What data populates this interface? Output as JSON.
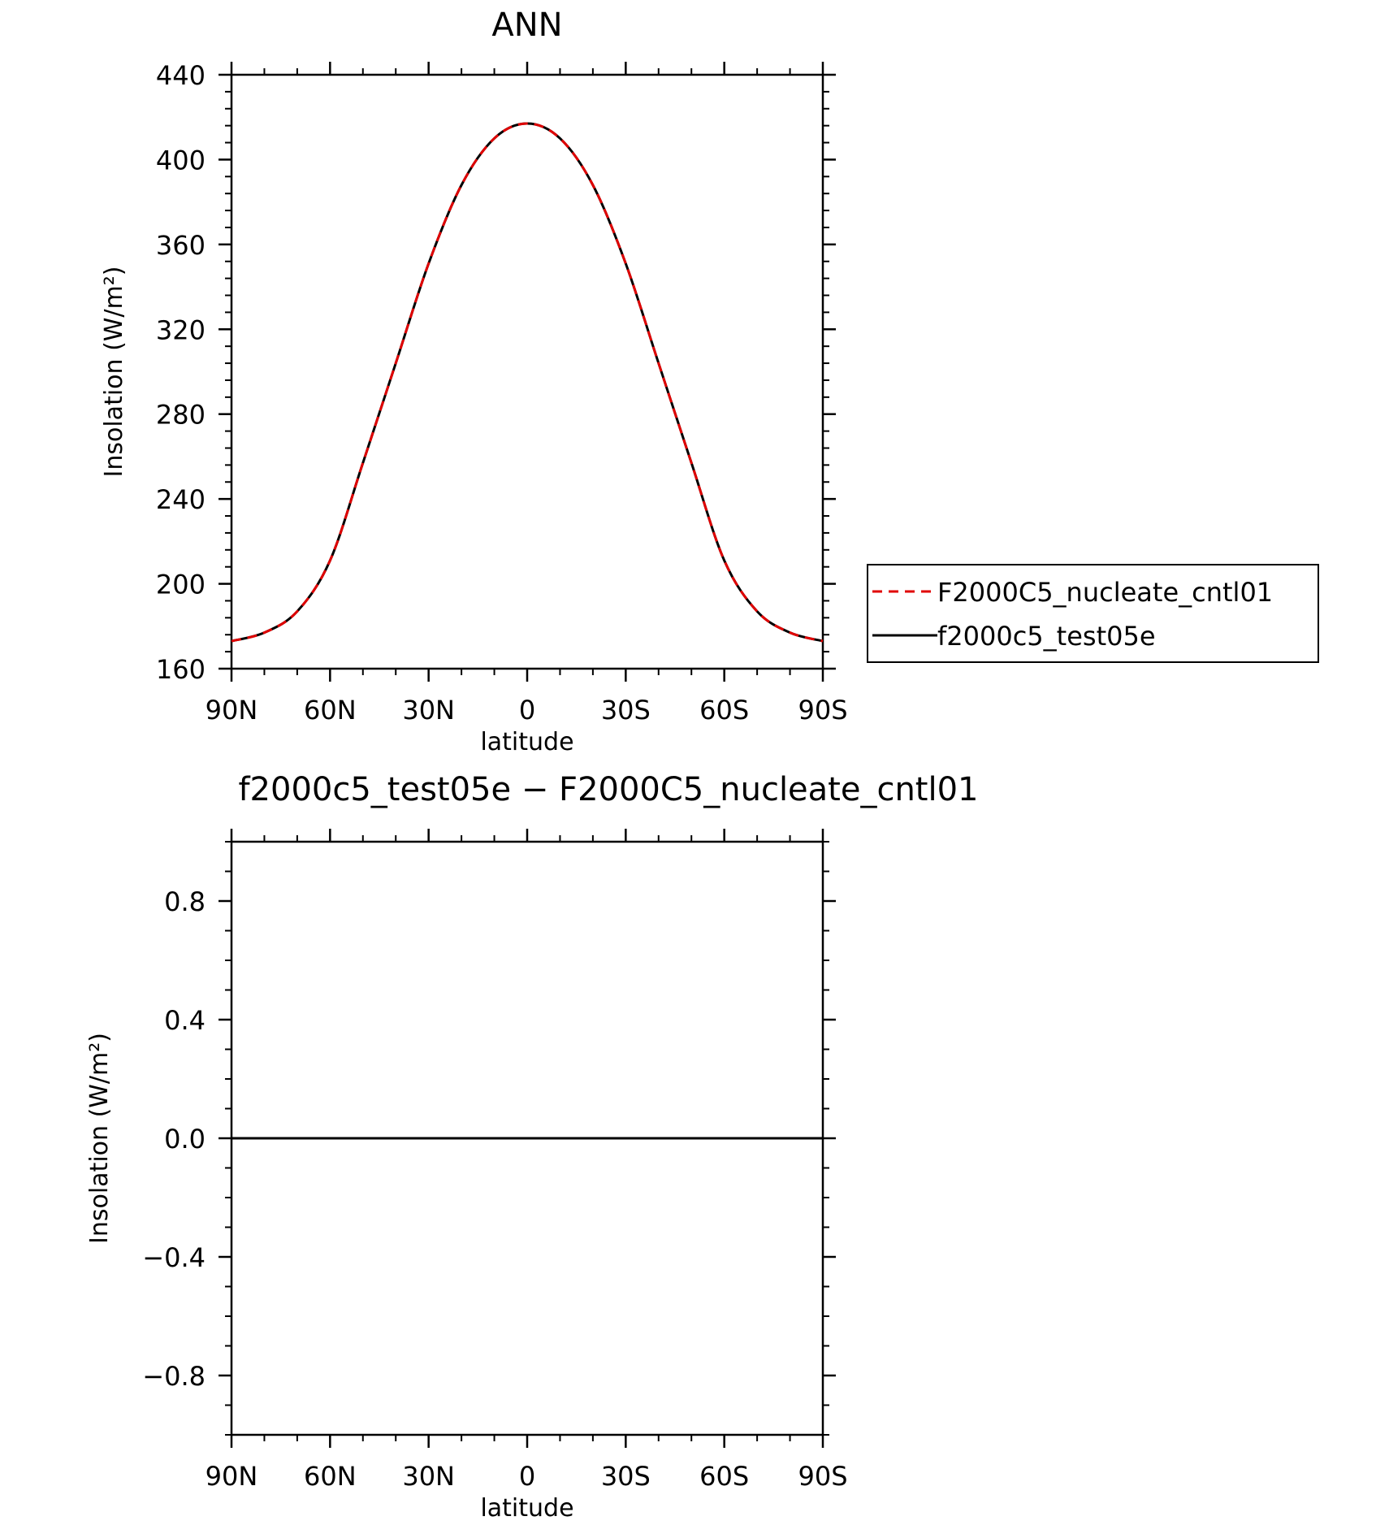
{
  "chart_data": [
    {
      "type": "line",
      "title": "ANN",
      "xlabel": "latitude",
      "ylabel": "Insolation (W/m²)",
      "xlim": [
        -90,
        90
      ],
      "ylim": [
        160,
        440
      ],
      "x_ticks": [
        {
          "value": -90,
          "label": "90N"
        },
        {
          "value": -60,
          "label": "60N"
        },
        {
          "value": -30,
          "label": "30N"
        },
        {
          "value": 0,
          "label": "0"
        },
        {
          "value": 30,
          "label": "30S"
        },
        {
          "value": 60,
          "label": "60S"
        },
        {
          "value": 90,
          "label": "90S"
        }
      ],
      "y_ticks": [
        {
          "value": 160,
          "label": "160"
        },
        {
          "value": 200,
          "label": "200"
        },
        {
          "value": 240,
          "label": "240"
        },
        {
          "value": 280,
          "label": "280"
        },
        {
          "value": 320,
          "label": "320"
        },
        {
          "value": 360,
          "label": "360"
        },
        {
          "value": 400,
          "label": "400"
        },
        {
          "value": 440,
          "label": "440"
        }
      ],
      "x": [
        -90,
        -80,
        -70,
        -60,
        -50,
        -40,
        -30,
        -20,
        -10,
        0,
        10,
        20,
        30,
        40,
        50,
        60,
        70,
        80,
        90
      ],
      "series": [
        {
          "name": "F2000C5_nucleate_cntl01",
          "color": "#e00000",
          "dash": true,
          "values": [
            173,
            177,
            187,
            211,
            257,
            304,
            351,
            388,
            410,
            417,
            410,
            388,
            351,
            304,
            257,
            211,
            187,
            177,
            173
          ]
        },
        {
          "name": "f2000c5_test05e",
          "color": "#000000",
          "dash": false,
          "values": [
            173,
            177,
            187,
            211,
            257,
            304,
            351,
            388,
            410,
            417,
            410,
            388,
            351,
            304,
            257,
            211,
            187,
            177,
            173
          ]
        }
      ],
      "legend": "outside-right"
    },
    {
      "type": "line",
      "title": "f2000c5_test05e − F2000C5_nucleate_cntl01",
      "xlabel": "latitude",
      "ylabel": "Insolation (W/m²)",
      "xlim": [
        -90,
        90
      ],
      "ylim": [
        -1.0,
        1.0
      ],
      "x_ticks": [
        {
          "value": -90,
          "label": "90N"
        },
        {
          "value": -60,
          "label": "60N"
        },
        {
          "value": -30,
          "label": "30N"
        },
        {
          "value": 0,
          "label": "0"
        },
        {
          "value": 30,
          "label": "30S"
        },
        {
          "value": 60,
          "label": "60S"
        },
        {
          "value": 90,
          "label": "90S"
        }
      ],
      "y_ticks": [
        {
          "value": -0.8,
          "label": "−0.8"
        },
        {
          "value": -0.4,
          "label": "−0.4"
        },
        {
          "value": 0.0,
          "label": "0.0"
        },
        {
          "value": 0.4,
          "label": "0.4"
        },
        {
          "value": 0.8,
          "label": "0.8"
        }
      ],
      "x": [
        -90,
        90
      ],
      "series": [
        {
          "color": "#000000",
          "dash": false,
          "values": [
            0,
            0
          ]
        }
      ]
    }
  ]
}
